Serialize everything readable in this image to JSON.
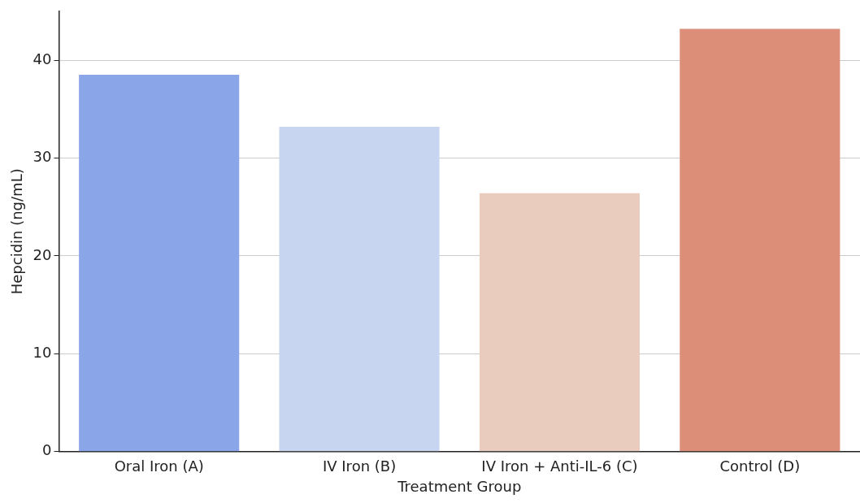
{
  "chart_data": {
    "type": "bar",
    "xlabel": "Treatment Group",
    "ylabel": "Hepcidin (ng/mL)",
    "categories": [
      "Oral Iron (A)",
      "IV Iron (B)",
      "IV Iron + Anti-IL-6 (C)",
      "Control (D)"
    ],
    "values": [
      38.5,
      33.2,
      26.4,
      43.2
    ],
    "colors": [
      "#8aa5e8",
      "#c8d5f0",
      "#e9ccbe",
      "#dc8e78"
    ],
    "ylim": [
      0,
      45
    ],
    "yticks": [
      0,
      10,
      20,
      30,
      40
    ],
    "grid": "y"
  }
}
